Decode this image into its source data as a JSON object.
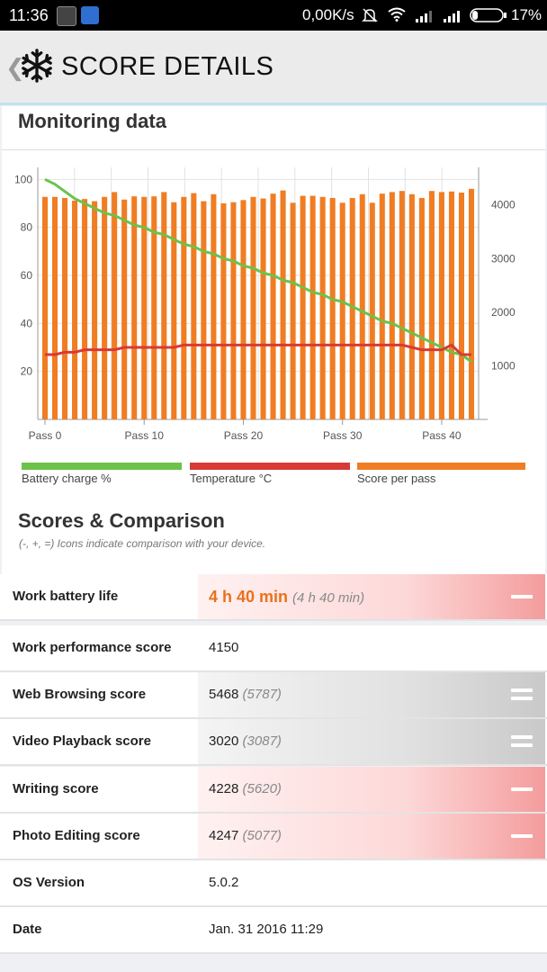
{
  "status_bar": {
    "time": "11:36",
    "network_speed": "0,00K/s",
    "battery": "17%"
  },
  "header": {
    "title": "SCORE DETAILS",
    "back_icon": "chevron-left-icon",
    "logo_icon": "snowflake-icon"
  },
  "monitoring": {
    "title": "Monitoring data",
    "legend": [
      {
        "label": "Battery charge %",
        "color": "#6cc24a"
      },
      {
        "label": "Temperature °C",
        "color": "#d83a35"
      },
      {
        "label": "Score per pass",
        "color": "#f07d23"
      }
    ]
  },
  "chart_data": {
    "type": "bar",
    "x_ticks": [
      "Pass 0",
      "Pass 10",
      "Pass 20",
      "Pass 30",
      "Pass 40"
    ],
    "y_left_ticks": [
      "100",
      "80",
      "60",
      "40",
      "20"
    ],
    "y_right_ticks": [
      "4000",
      "3000",
      "2000",
      "1000"
    ],
    "ylim_left": [
      0,
      105
    ],
    "ylim_right": [
      0,
      4700
    ],
    "x_range": [
      0,
      43
    ],
    "grid": true,
    "legend_position": "bottom",
    "series": [
      {
        "name": "Score per pass",
        "axis": "right",
        "type": "bar",
        "color": "#f07d23",
        "x": [
          0,
          1,
          2,
          3,
          4,
          5,
          6,
          7,
          8,
          9,
          10,
          11,
          12,
          13,
          14,
          15,
          16,
          17,
          18,
          19,
          20,
          21,
          22,
          23,
          24,
          25,
          26,
          27,
          28,
          29,
          30,
          31,
          32,
          33,
          34,
          35,
          36,
          37,
          38,
          39,
          40,
          41,
          42,
          43
        ],
        "values": [
          4150,
          4150,
          4130,
          4080,
          4110,
          4070,
          4150,
          4240,
          4100,
          4160,
          4150,
          4160,
          4240,
          4050,
          4150,
          4220,
          4070,
          4200,
          4030,
          4050,
          4090,
          4150,
          4120,
          4210,
          4270,
          4040,
          4170,
          4170,
          4150,
          4130,
          4040,
          4130,
          4200,
          4040,
          4210,
          4240,
          4260,
          4200,
          4130,
          4260,
          4240,
          4250,
          4230,
          4300
        ]
      },
      {
        "name": "Battery charge %",
        "axis": "left",
        "type": "line",
        "color": "#6cc24a",
        "x": [
          0,
          1,
          2,
          3,
          4,
          5,
          6,
          7,
          8,
          9,
          10,
          11,
          12,
          13,
          14,
          15,
          16,
          17,
          18,
          19,
          20,
          21,
          22,
          23,
          24,
          25,
          26,
          27,
          28,
          29,
          30,
          31,
          32,
          33,
          34,
          35,
          36,
          37,
          38,
          39,
          40,
          41,
          42,
          43
        ],
        "values": [
          100,
          98,
          95,
          92,
          90,
          88,
          86,
          85,
          83,
          81,
          80,
          78,
          77,
          75,
          73,
          72,
          70,
          69,
          67,
          66,
          64,
          63,
          61,
          60,
          58,
          57,
          55,
          53,
          52,
          50,
          49,
          47,
          45,
          43,
          41,
          40,
          38,
          36,
          34,
          32,
          30,
          28,
          27,
          24
        ]
      },
      {
        "name": "Temperature °C",
        "axis": "left",
        "type": "line",
        "color": "#d83a35",
        "x": [
          0,
          1,
          2,
          3,
          4,
          5,
          6,
          7,
          8,
          9,
          10,
          11,
          12,
          13,
          14,
          15,
          16,
          17,
          18,
          19,
          20,
          21,
          22,
          23,
          24,
          25,
          26,
          27,
          28,
          29,
          30,
          31,
          32,
          33,
          34,
          35,
          36,
          37,
          38,
          39,
          40,
          41,
          42,
          43
        ],
        "values": [
          27,
          27,
          28,
          28,
          29,
          29,
          29,
          29,
          30,
          30,
          30,
          30,
          30,
          30,
          31,
          31,
          31,
          31,
          31,
          31,
          31,
          31,
          31,
          31,
          31,
          31,
          31,
          31,
          31,
          31,
          31,
          31,
          31,
          31,
          31,
          31,
          31,
          30,
          29,
          29,
          29,
          31,
          27,
          27
        ]
      }
    ]
  },
  "scores": {
    "title": "Scores & Comparison",
    "subtitle": "(-, +, =) Icons indicate comparison with your device.",
    "rows": [
      {
        "label": "Work battery life",
        "value": "4 h 40 min",
        "ref": "(4 h 40 min)",
        "comparison": "minus"
      },
      {
        "label": "Work performance score",
        "value": "4150",
        "ref": "",
        "comparison": ""
      },
      {
        "label": "Web Browsing score",
        "value": "5468",
        "ref": "(5787)",
        "comparison": "equal"
      },
      {
        "label": "Video Playback score",
        "value": "3020",
        "ref": "(3087)",
        "comparison": "equal"
      },
      {
        "label": "Writing score",
        "value": "4228",
        "ref": "(5620)",
        "comparison": "minus"
      },
      {
        "label": "Photo Editing score",
        "value": "4247",
        "ref": "(5077)",
        "comparison": "minus"
      },
      {
        "label": "OS Version",
        "value": "5.0.2",
        "ref": "",
        "comparison": ""
      },
      {
        "label": "Date",
        "value": "Jan. 31 2016 11:29",
        "ref": "",
        "comparison": ""
      }
    ]
  }
}
